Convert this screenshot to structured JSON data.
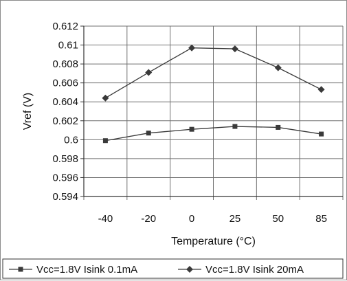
{
  "chart_data": {
    "type": "line",
    "title": "",
    "xlabel": "Temperature (°C)",
    "ylabel": "Vref (V)",
    "categories": [
      "-40",
      "-20",
      "0",
      "25",
      "50",
      "85"
    ],
    "ylim": [
      0.594,
      0.612
    ],
    "yticks": [
      0.594,
      0.596,
      0.598,
      0.6,
      0.602,
      0.604,
      0.606,
      0.608,
      0.61,
      0.612
    ],
    "ytick_labels": [
      "0.594",
      "0.596",
      "0.598",
      "0.6",
      "0.602",
      "0.604",
      "0.606",
      "0.608",
      "0.61",
      "0.612"
    ],
    "grid": true,
    "legend_position": "bottom",
    "series": [
      {
        "name": "Vcc=1.8V Isink 0.1mA",
        "marker": "square",
        "color": "#3a3a3a",
        "values": [
          0.5999,
          0.6007,
          0.6011,
          0.6014,
          0.6013,
          0.6006
        ]
      },
      {
        "name": "Vcc=1.8V Isink 20mA",
        "marker": "diamond",
        "color": "#3a3a3a",
        "values": [
          0.6044,
          0.6071,
          0.6097,
          0.6096,
          0.6076,
          0.6053
        ]
      }
    ]
  }
}
